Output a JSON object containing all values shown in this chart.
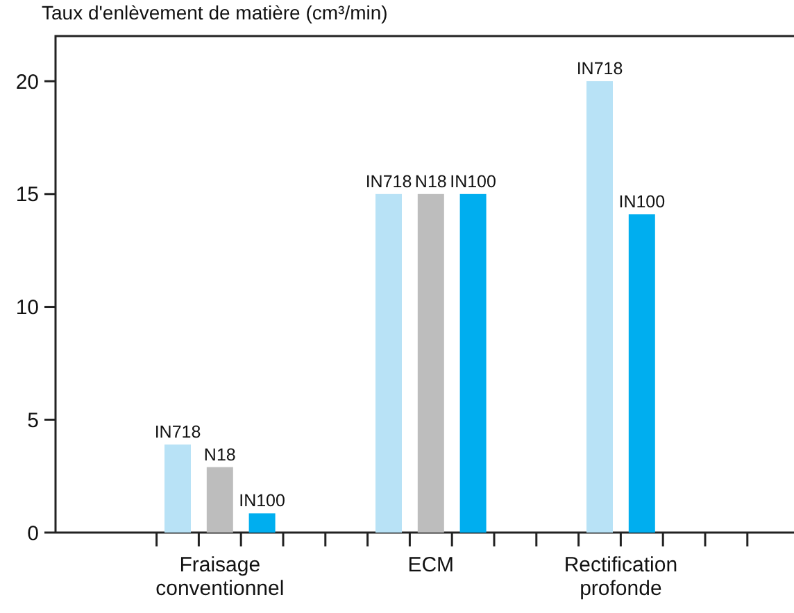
{
  "chart_data": {
    "type": "bar",
    "ylabel": "Taux d'enlèvement de matière (cm³/min)",
    "categories": [
      "Fraisage conventionnel",
      "ECM",
      "Rectification profonde"
    ],
    "series": [
      {
        "name": "IN718",
        "color": "#b8e2f6",
        "values": [
          3.9,
          15,
          20
        ]
      },
      {
        "name": "N18",
        "color": "#bdbdbd",
        "values": [
          2.9,
          15,
          null
        ]
      },
      {
        "name": "IN100",
        "color": "#00aeef",
        "values": [
          0.85,
          15,
          14.1
        ]
      }
    ],
    "ylim": [
      0,
      22
    ],
    "yticks": [
      0,
      5,
      10,
      15,
      20
    ],
    "grid": false
  }
}
